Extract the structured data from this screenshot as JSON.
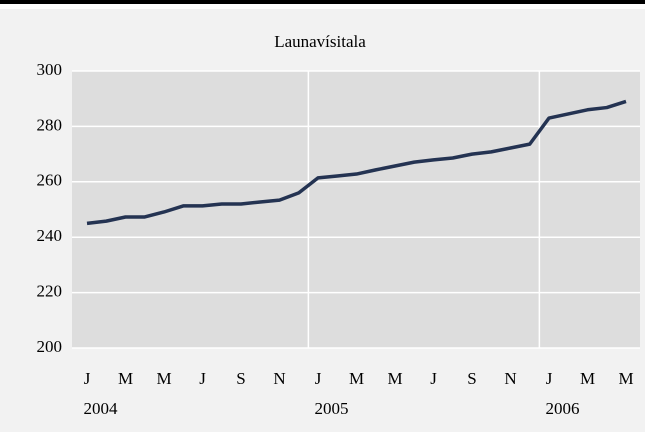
{
  "chart_data": {
    "type": "line",
    "title": "Launavísitala",
    "categories": [
      "J",
      null,
      "M",
      null,
      "M",
      null,
      "J",
      null,
      "S",
      null,
      "N",
      null,
      "J",
      null,
      "M",
      null,
      "M",
      null,
      "J",
      null,
      "S",
      null,
      "N",
      null,
      "J",
      null,
      "M",
      null,
      "M"
    ],
    "year_labels": [
      "2004",
      "2005",
      "2006"
    ],
    "values": [
      245,
      245.8,
      247.3,
      247.3,
      249.1,
      251.3,
      251.3,
      252,
      252,
      252.7,
      253.4,
      256,
      261.4,
      262.1,
      262.8,
      264.3,
      265.7,
      267.1,
      267.9,
      268.6,
      270,
      270.8,
      272.2,
      273.6,
      283,
      284.5,
      286,
      286.8,
      289
    ],
    "color": "#243352",
    "ylim": [
      200,
      300
    ],
    "yticks": [
      200,
      220,
      240,
      260,
      280,
      300
    ],
    "grid": true
  }
}
